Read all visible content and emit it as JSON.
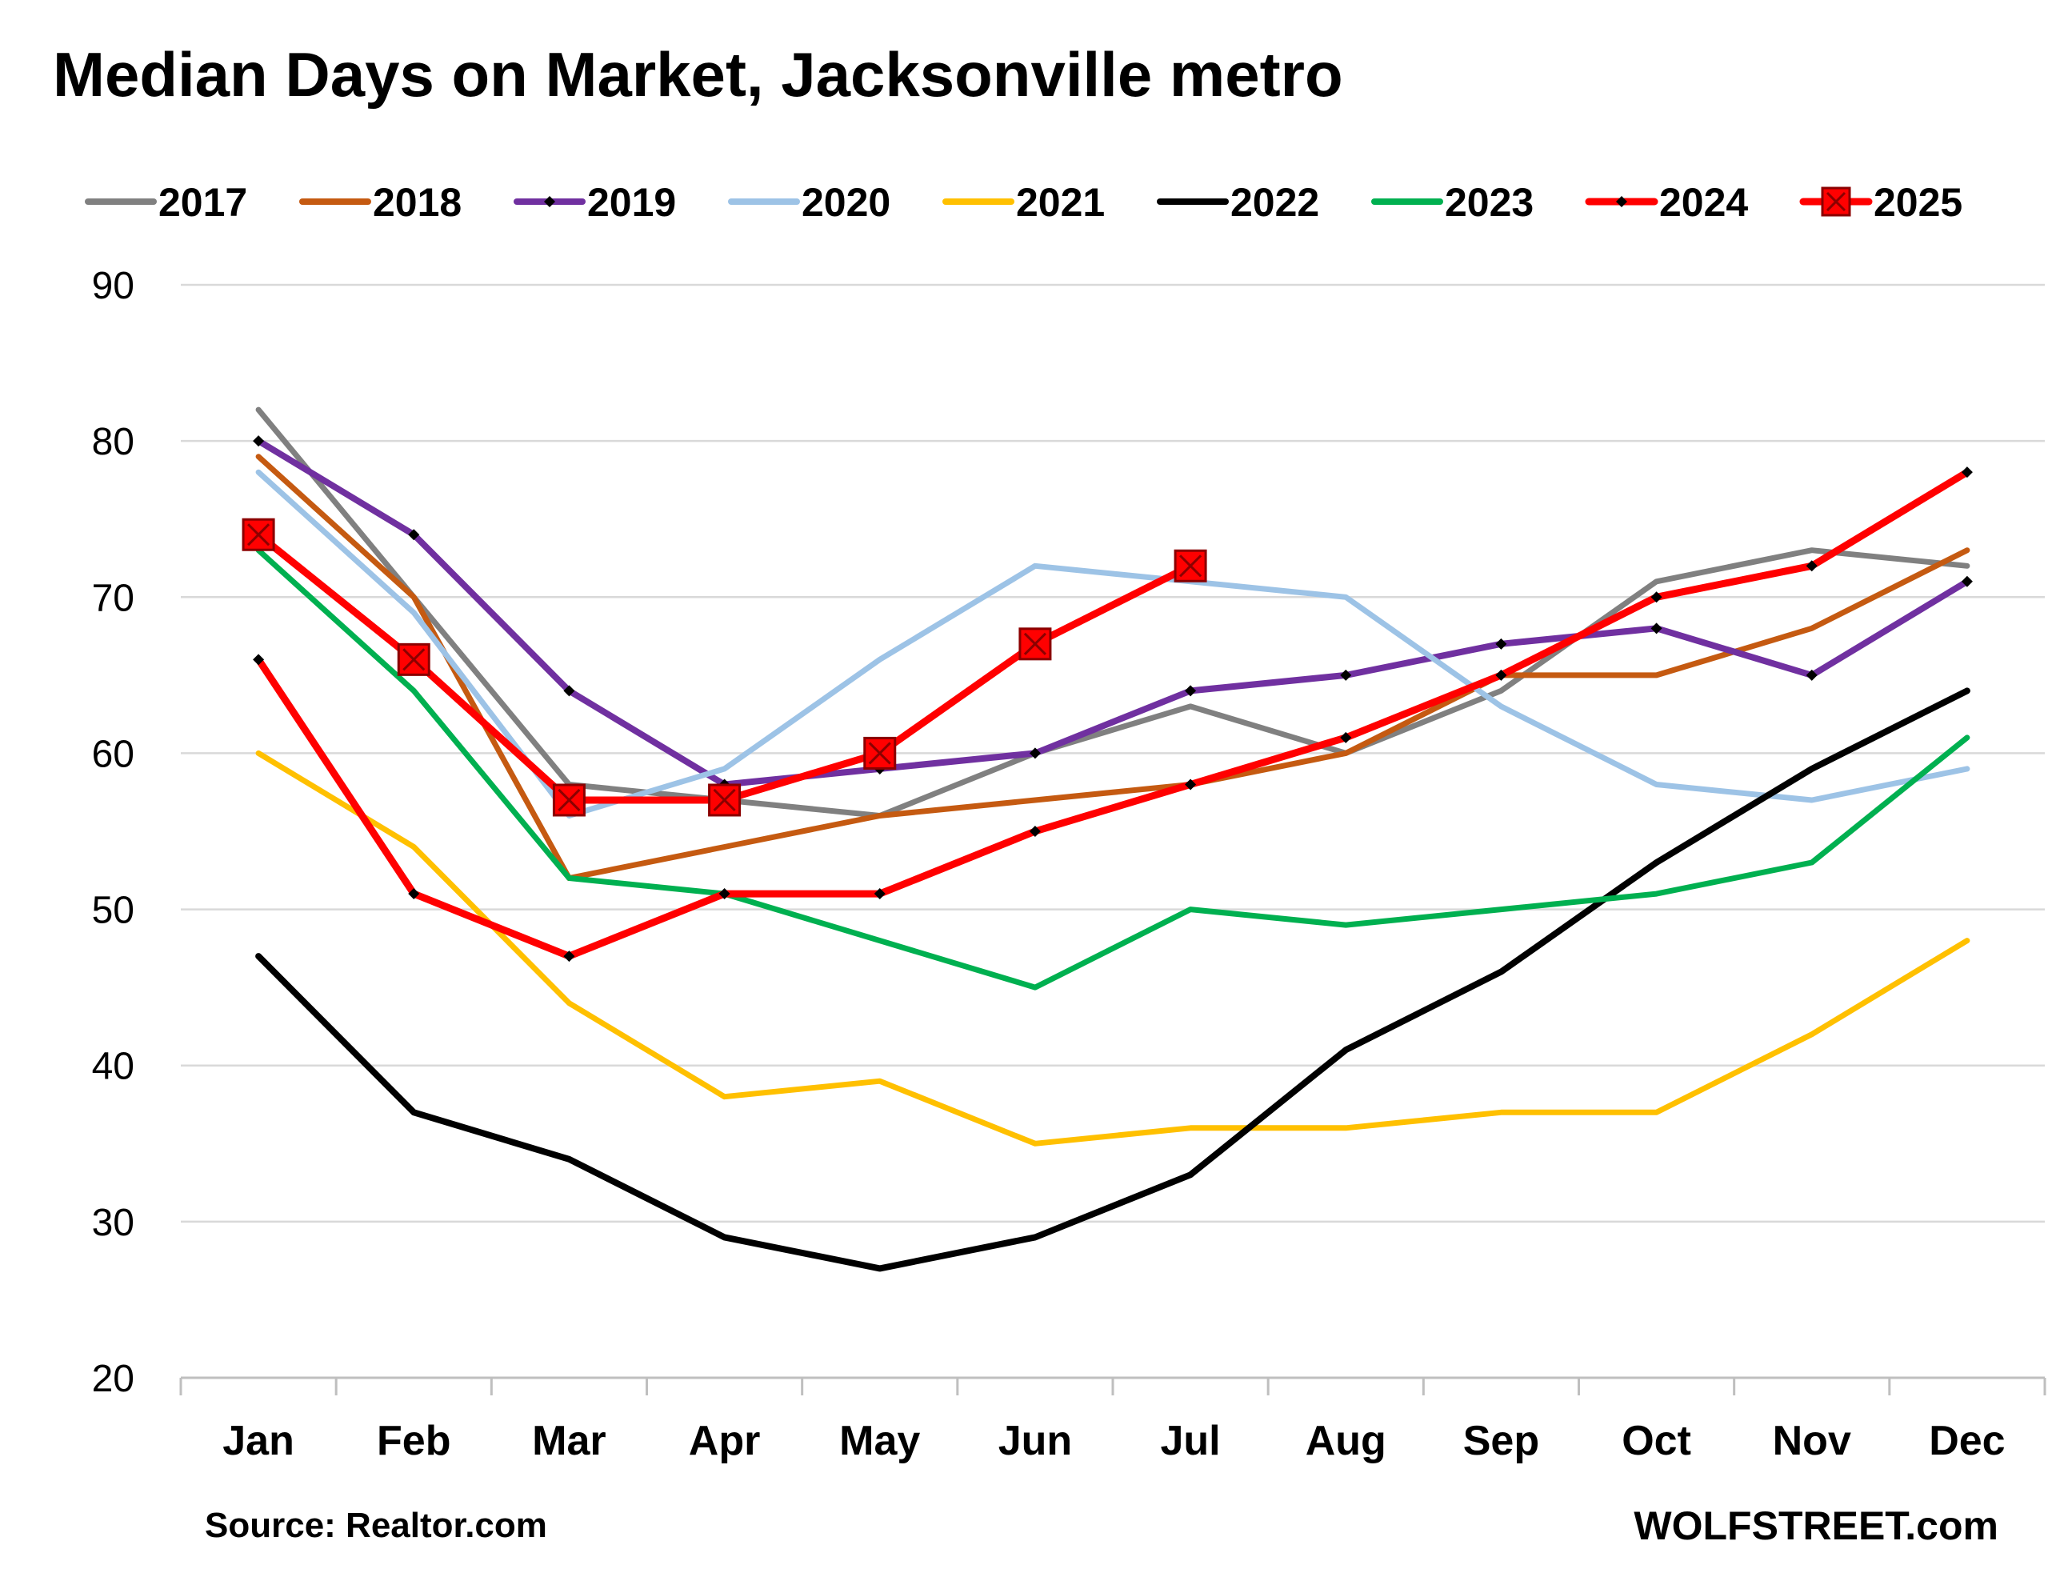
{
  "chart_data": {
    "type": "line",
    "title": "Median Days on Market, Jacksonville metro",
    "xlabel": "",
    "ylabel": "",
    "categories": [
      "Jan",
      "Feb",
      "Mar",
      "Apr",
      "May",
      "Jun",
      "Jul",
      "Aug",
      "Sep",
      "Oct",
      "Nov",
      "Dec"
    ],
    "ylim": [
      20,
      90
    ],
    "yticks": [
      "20",
      "30",
      "40",
      "50",
      "60",
      "70",
      "80",
      "90"
    ],
    "grid": "horizontal",
    "legend_position": "top",
    "series": [
      {
        "name": "2017",
        "color": "#808080",
        "marker": "none",
        "values": [
          82,
          70,
          58,
          57,
          56,
          60,
          63,
          60,
          64,
          71,
          73,
          72
        ]
      },
      {
        "name": "2018",
        "color": "#C55A11",
        "marker": "none",
        "values": [
          79,
          70,
          52,
          54,
          56,
          57,
          58,
          60,
          65,
          65,
          68,
          73
        ]
      },
      {
        "name": "2019",
        "color": "#7030A0",
        "marker": "diamond",
        "values": [
          80,
          74,
          64,
          58,
          59,
          60,
          64,
          65,
          67,
          68,
          65,
          71
        ]
      },
      {
        "name": "2020",
        "color": "#9DC3E6",
        "marker": "none",
        "values": [
          78,
          69,
          56,
          59,
          66,
          72,
          71,
          70,
          63,
          58,
          57,
          59
        ]
      },
      {
        "name": "2021",
        "color": "#FFC000",
        "marker": "none",
        "values": [
          60,
          54,
          44,
          38,
          39,
          35,
          36,
          36,
          37,
          37,
          42,
          48
        ]
      },
      {
        "name": "2022",
        "color": "#000000",
        "marker": "none",
        "values": [
          47,
          37,
          34,
          29,
          27,
          29,
          33,
          41,
          46,
          53,
          59,
          64
        ]
      },
      {
        "name": "2023",
        "color": "#00B050",
        "marker": "none",
        "values": [
          73,
          64,
          52,
          51,
          48,
          45,
          50,
          49,
          50,
          51,
          53,
          61
        ]
      },
      {
        "name": "2024",
        "color": "#FF0000",
        "marker": "diamond",
        "values": [
          66,
          51,
          47,
          51,
          51,
          55,
          58,
          61,
          65,
          70,
          72,
          78
        ]
      },
      {
        "name": "2025",
        "color": "#FF0000",
        "marker": "square-x",
        "values": [
          74,
          66,
          57,
          57,
          60,
          67,
          72,
          null,
          null,
          null,
          null,
          null
        ]
      }
    ],
    "source": "Source: Realtor.com",
    "brand": "WOLFSTREET.com"
  }
}
